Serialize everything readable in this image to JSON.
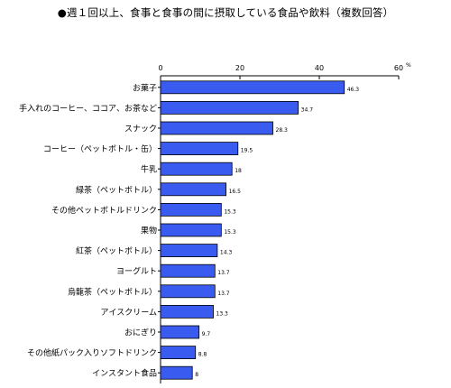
{
  "title": "●週１回以上、食事と食事の間に摂取している食品や飲料（複数回答）",
  "chart_data": {
    "type": "bar",
    "orientation": "horizontal",
    "title": "●週１回以上、食事と食事の間に摂取している食品や飲料（複数回答）",
    "unit": "%",
    "xlim": [
      0,
      60
    ],
    "ticks": [
      "0",
      "20",
      "40",
      "60"
    ],
    "grid": false,
    "bar_color": "#3a5bf0",
    "categories": [
      "お菓子",
      "手入れのコーヒー、ココア、お茶など",
      "スナック",
      "コーヒー（ペットボトル・缶）",
      "牛乳",
      "緑茶（ペットボトル）",
      "その他ペットボトルドリンク",
      "果物",
      "紅茶（ペットボトル）",
      "ヨーグルト",
      "烏龍茶（ペットボトル）",
      "アイスクリーム",
      "おにぎり",
      "その他紙パック入りソフトドリンク",
      "インスタント食品"
    ],
    "values": [
      46.3,
      34.7,
      28.3,
      19.5,
      18,
      16.5,
      15.3,
      15.3,
      14.3,
      13.7,
      13.7,
      13.3,
      9.7,
      8.8,
      8
    ],
    "value_labels": [
      "46.3",
      "34.7",
      "28.3",
      "19.5",
      "18",
      "16.5",
      "15.3",
      "15.3",
      "14.3",
      "13.7",
      "13.7",
      "13.3",
      "9.7",
      "8.8",
      "8"
    ]
  }
}
